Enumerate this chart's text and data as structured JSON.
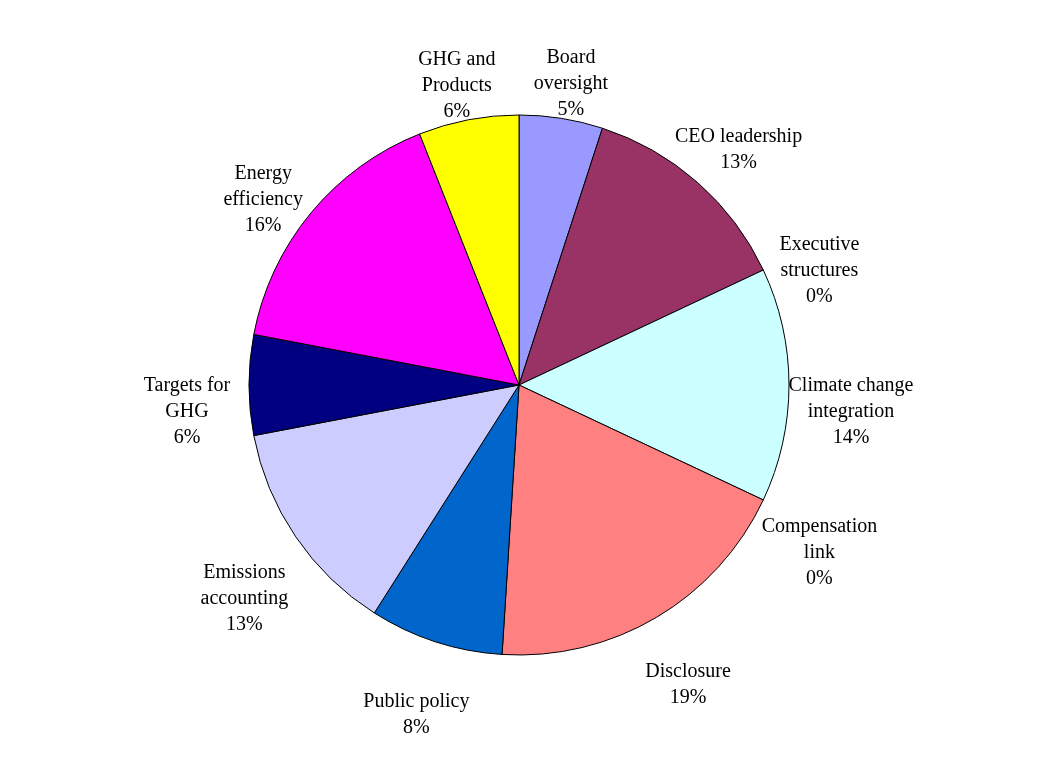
{
  "chart_data": {
    "type": "pie",
    "categories": [
      "Board oversight",
      "CEO leadership",
      "Executive structures",
      "Climate change integration",
      "Compensation link",
      "Disclosure",
      "Public policy",
      "Emissions accounting",
      "Targets for GHG",
      "Energy efficiency",
      "GHG and Products"
    ],
    "values": [
      5,
      13,
      0,
      14,
      0,
      19,
      8,
      13,
      6,
      16,
      6
    ],
    "value_labels": [
      "5%",
      "13%",
      "0%",
      "14%",
      "0%",
      "19%",
      "8%",
      "13%",
      "6%",
      "16%",
      "6%"
    ],
    "colors": [
      "#9999ff",
      "#993366",
      "#ffffcc",
      "#ccffff",
      "#660066",
      "#ff8080",
      "#0066cc",
      "#ccccff",
      "#000080",
      "#ff00ff",
      "#ffff00"
    ]
  }
}
